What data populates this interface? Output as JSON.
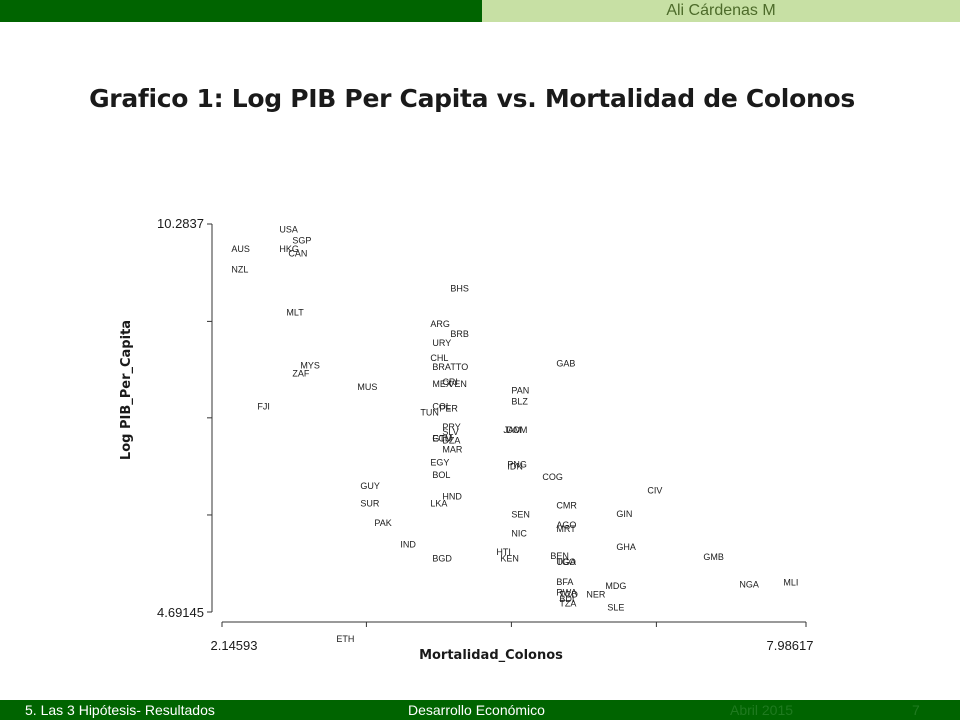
{
  "header": {
    "author": "Ali Cárdenas M"
  },
  "slide": {
    "title": "Grafico 1: Log PIB Per Capita vs. Mortalidad de Colonos"
  },
  "footer": {
    "section": "5. Las  3 Hipótesis- Resultados",
    "course": "Desarrollo Económico",
    "date": "Abril 2015",
    "page": "7"
  },
  "colors": {
    "top_bar_dark": "#006400",
    "top_bar_light": "#c7e0a4",
    "footer_bar": "#006400"
  },
  "chart_data": {
    "type": "scatter",
    "title": "",
    "xlabel": "Mortalidad_Colonos",
    "ylabel": "Log PIB_Per_Capita",
    "xlim": [
      2.14593,
      7.98617
    ],
    "ylim": [
      4.69145,
      10.2837
    ],
    "x_tick_labels": [
      "2.14593",
      "7.98617"
    ],
    "y_tick_labels": [
      "10.2837",
      "4.69145"
    ],
    "x_ticks": [
      2.14593,
      3.59,
      5.04,
      6.49,
      7.98617
    ],
    "y_ticks": [
      10.2837,
      8.88,
      7.49,
      6.09,
      4.69145
    ],
    "grid": false,
    "marker": "label",
    "points": [
      {
        "label": "USA",
        "x": 2.72,
        "y": 10.22
      },
      {
        "label": "SGP",
        "x": 2.85,
        "y": 10.06
      },
      {
        "label": "AUS",
        "x": 2.24,
        "y": 9.94
      },
      {
        "label": "HKG",
        "x": 2.72,
        "y": 9.94
      },
      {
        "label": "CAN",
        "x": 2.81,
        "y": 9.87
      },
      {
        "label": "NZL",
        "x": 2.24,
        "y": 9.64
      },
      {
        "label": "BHS",
        "x": 4.43,
        "y": 9.37
      },
      {
        "label": "MLT",
        "x": 2.79,
        "y": 9.02
      },
      {
        "label": "ARG",
        "x": 4.23,
        "y": 8.86
      },
      {
        "label": "BRB",
        "x": 4.43,
        "y": 8.71
      },
      {
        "label": "URY",
        "x": 4.25,
        "y": 8.58
      },
      {
        "label": "CHL",
        "x": 4.23,
        "y": 8.37
      },
      {
        "label": "GAB",
        "x": 5.49,
        "y": 8.29
      },
      {
        "label": "MYS",
        "x": 2.93,
        "y": 8.26
      },
      {
        "label": "BRA",
        "x": 4.25,
        "y": 8.24
      },
      {
        "label": "TTO",
        "x": 4.43,
        "y": 8.24
      },
      {
        "label": "ZAF",
        "x": 2.85,
        "y": 8.14
      },
      {
        "label": "CRI",
        "x": 4.35,
        "y": 8.02
      },
      {
        "label": "VEN",
        "x": 4.41,
        "y": 7.99
      },
      {
        "label": "MEX",
        "x": 4.25,
        "y": 7.99
      },
      {
        "label": "MUS",
        "x": 3.5,
        "y": 7.95
      },
      {
        "label": "PAN",
        "x": 5.04,
        "y": 7.9
      },
      {
        "label": "BLZ",
        "x": 5.04,
        "y": 7.74
      },
      {
        "label": "FJI",
        "x": 2.5,
        "y": 7.67
      },
      {
        "label": "COL",
        "x": 4.25,
        "y": 7.67
      },
      {
        "label": "PER",
        "x": 4.32,
        "y": 7.64
      },
      {
        "label": "TUN",
        "x": 4.13,
        "y": 7.58
      },
      {
        "label": "PRY",
        "x": 4.35,
        "y": 7.37
      },
      {
        "label": "JAM",
        "x": 4.96,
        "y": 7.33
      },
      {
        "label": "DOM",
        "x": 4.99,
        "y": 7.33
      },
      {
        "label": "SLV",
        "x": 4.35,
        "y": 7.3
      },
      {
        "label": "GTM",
        "x": 4.25,
        "y": 7.21
      },
      {
        "label": "ECU",
        "x": 4.25,
        "y": 7.21
      },
      {
        "label": "DZA",
        "x": 4.35,
        "y": 7.18
      },
      {
        "label": "MAR",
        "x": 4.35,
        "y": 7.05
      },
      {
        "label": "EGY",
        "x": 4.23,
        "y": 6.86
      },
      {
        "label": "PNG",
        "x": 5.0,
        "y": 6.83
      },
      {
        "label": "IDN",
        "x": 5.0,
        "y": 6.8
      },
      {
        "label": "BOL",
        "x": 4.25,
        "y": 6.68
      },
      {
        "label": "COG",
        "x": 5.35,
        "y": 6.65
      },
      {
        "label": "CIV",
        "x": 6.4,
        "y": 6.46
      },
      {
        "label": "GUY",
        "x": 3.53,
        "y": 6.52
      },
      {
        "label": "HND",
        "x": 4.35,
        "y": 6.37
      },
      {
        "label": "SUR",
        "x": 3.53,
        "y": 6.27
      },
      {
        "label": "LKA",
        "x": 4.23,
        "y": 6.27
      },
      {
        "label": "CMR",
        "x": 5.49,
        "y": 6.24
      },
      {
        "label": "GIN",
        "x": 6.09,
        "y": 6.12
      },
      {
        "label": "SEN",
        "x": 5.04,
        "y": 6.11
      },
      {
        "label": "PAK",
        "x": 3.67,
        "y": 5.99
      },
      {
        "label": "AGO",
        "x": 5.49,
        "y": 5.96
      },
      {
        "label": "MRT",
        "x": 5.49,
        "y": 5.9
      },
      {
        "label": "NIC",
        "x": 5.04,
        "y": 5.84
      },
      {
        "label": "IND",
        "x": 3.93,
        "y": 5.68
      },
      {
        "label": "GHA",
        "x": 6.09,
        "y": 5.64
      },
      {
        "label": "HTI",
        "x": 4.89,
        "y": 5.57
      },
      {
        "label": "GMB",
        "x": 6.96,
        "y": 5.5
      },
      {
        "label": "BEN",
        "x": 5.43,
        "y": 5.51
      },
      {
        "label": "KEN",
        "x": 4.93,
        "y": 5.48
      },
      {
        "label": "BGD",
        "x": 4.25,
        "y": 5.48
      },
      {
        "label": "TGO",
        "x": 5.49,
        "y": 5.43
      },
      {
        "label": "UGA",
        "x": 5.49,
        "y": 5.43
      },
      {
        "label": "MLI",
        "x": 7.76,
        "y": 5.13
      },
      {
        "label": "BFA",
        "x": 5.49,
        "y": 5.14
      },
      {
        "label": "NGA",
        "x": 7.32,
        "y": 5.1
      },
      {
        "label": "MDG",
        "x": 5.98,
        "y": 5.08
      },
      {
        "label": "RWA",
        "x": 5.49,
        "y": 4.99
      },
      {
        "label": "TCD",
        "x": 5.52,
        "y": 4.96
      },
      {
        "label": "NER",
        "x": 5.79,
        "y": 4.96
      },
      {
        "label": "BDI",
        "x": 5.52,
        "y": 4.89
      },
      {
        "label": "TZA",
        "x": 5.52,
        "y": 4.83
      },
      {
        "label": "SLE",
        "x": 6.0,
        "y": 4.77
      },
      {
        "label": "ETH",
        "x": 3.29,
        "y": 4.32
      }
    ]
  }
}
